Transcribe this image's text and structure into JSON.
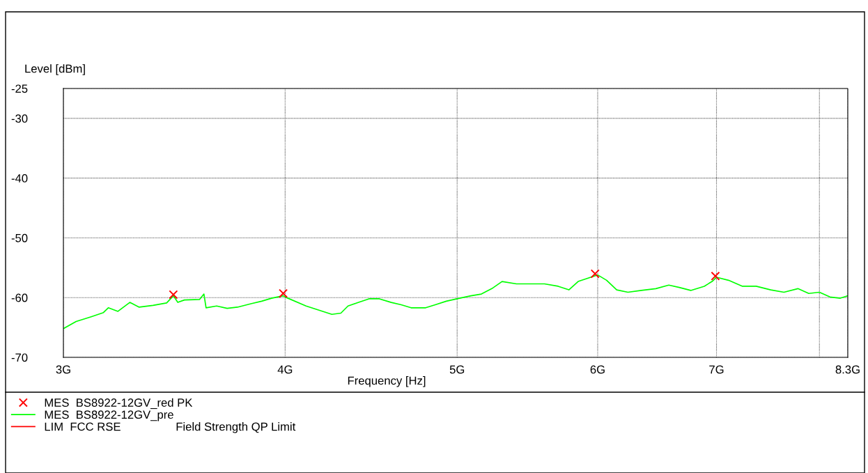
{
  "chart_data": {
    "type": "line",
    "xlabel": "Frequency [Hz]",
    "ylabel": "Level [dBm]",
    "log": "x",
    "xlim": [
      3,
      8.3
    ],
    "ylim": [
      -70,
      -25
    ],
    "xticks": [
      {
        "value": 3,
        "label": "3G"
      },
      {
        "value": 4,
        "label": "4G"
      },
      {
        "value": 5,
        "label": "5G"
      },
      {
        "value": 6,
        "label": "6G"
      },
      {
        "value": 7,
        "label": "7G"
      },
      {
        "value": 8,
        "label": null
      },
      {
        "value": 8.3,
        "label": "8.3G"
      }
    ],
    "yticks": [
      -25,
      -30,
      -40,
      -50,
      -60,
      -70
    ],
    "grid": true,
    "legend": "bottom",
    "series": [
      {
        "name": "MES  BS8922-12GV_red PK",
        "type": "scatter",
        "marker": "cross",
        "color": "#ff0000",
        "x": [
          3.46,
          3.99,
          5.98,
          6.99
        ],
        "values": [
          -59.5,
          -59.3,
          -56.0,
          -56.4
        ]
      },
      {
        "name": "MES  BS8922-12GV_pre",
        "color": "#00ff00",
        "x": [
          3.0,
          3.05,
          3.11,
          3.16,
          3.18,
          3.22,
          3.27,
          3.31,
          3.37,
          3.43,
          3.46,
          3.48,
          3.51,
          3.58,
          3.6,
          3.61,
          3.66,
          3.71,
          3.76,
          3.83,
          3.88,
          3.93,
          3.99,
          4.0,
          4.11,
          4.2,
          4.25,
          4.3,
          4.34,
          4.4,
          4.46,
          4.52,
          4.59,
          4.65,
          4.71,
          4.8,
          4.86,
          4.93,
          5.0,
          5.09,
          5.16,
          5.23,
          5.3,
          5.4,
          5.5,
          5.6,
          5.7,
          5.78,
          5.85,
          5.93,
          6.0,
          6.07,
          6.15,
          6.24,
          6.35,
          6.47,
          6.58,
          6.67,
          6.77,
          6.89,
          6.96,
          7.0,
          7.11,
          7.24,
          7.37,
          7.51,
          7.64,
          7.78,
          7.89,
          8.0,
          8.11,
          8.22,
          8.3
        ],
        "values": [
          -65.2,
          -64.0,
          -63.2,
          -62.5,
          -61.7,
          -62.3,
          -60.8,
          -61.6,
          -61.3,
          -60.9,
          -59.7,
          -60.8,
          -60.4,
          -60.3,
          -59.4,
          -61.7,
          -61.4,
          -61.8,
          -61.6,
          -61.0,
          -60.6,
          -60.1,
          -59.7,
          -59.9,
          -61.4,
          -62.3,
          -62.8,
          -62.6,
          -61.4,
          -60.8,
          -60.2,
          -60.2,
          -60.8,
          -61.2,
          -61.7,
          -61.7,
          -61.2,
          -60.6,
          -60.2,
          -59.7,
          -59.4,
          -58.5,
          -57.3,
          -57.7,
          -57.7,
          -57.7,
          -58.1,
          -58.7,
          -57.3,
          -56.7,
          -56.2,
          -57.1,
          -58.7,
          -59.1,
          -58.8,
          -58.5,
          -57.9,
          -58.3,
          -58.8,
          -58.1,
          -57.3,
          -56.6,
          -57.1,
          -58.1,
          -58.1,
          -58.7,
          -59.1,
          -58.5,
          -59.3,
          -59.1,
          -59.9,
          -60.1,
          -59.7
        ]
      },
      {
        "name": "LIM  FCC RSE                 Field Strength QP Limit",
        "color": "#ff0000"
      }
    ]
  }
}
